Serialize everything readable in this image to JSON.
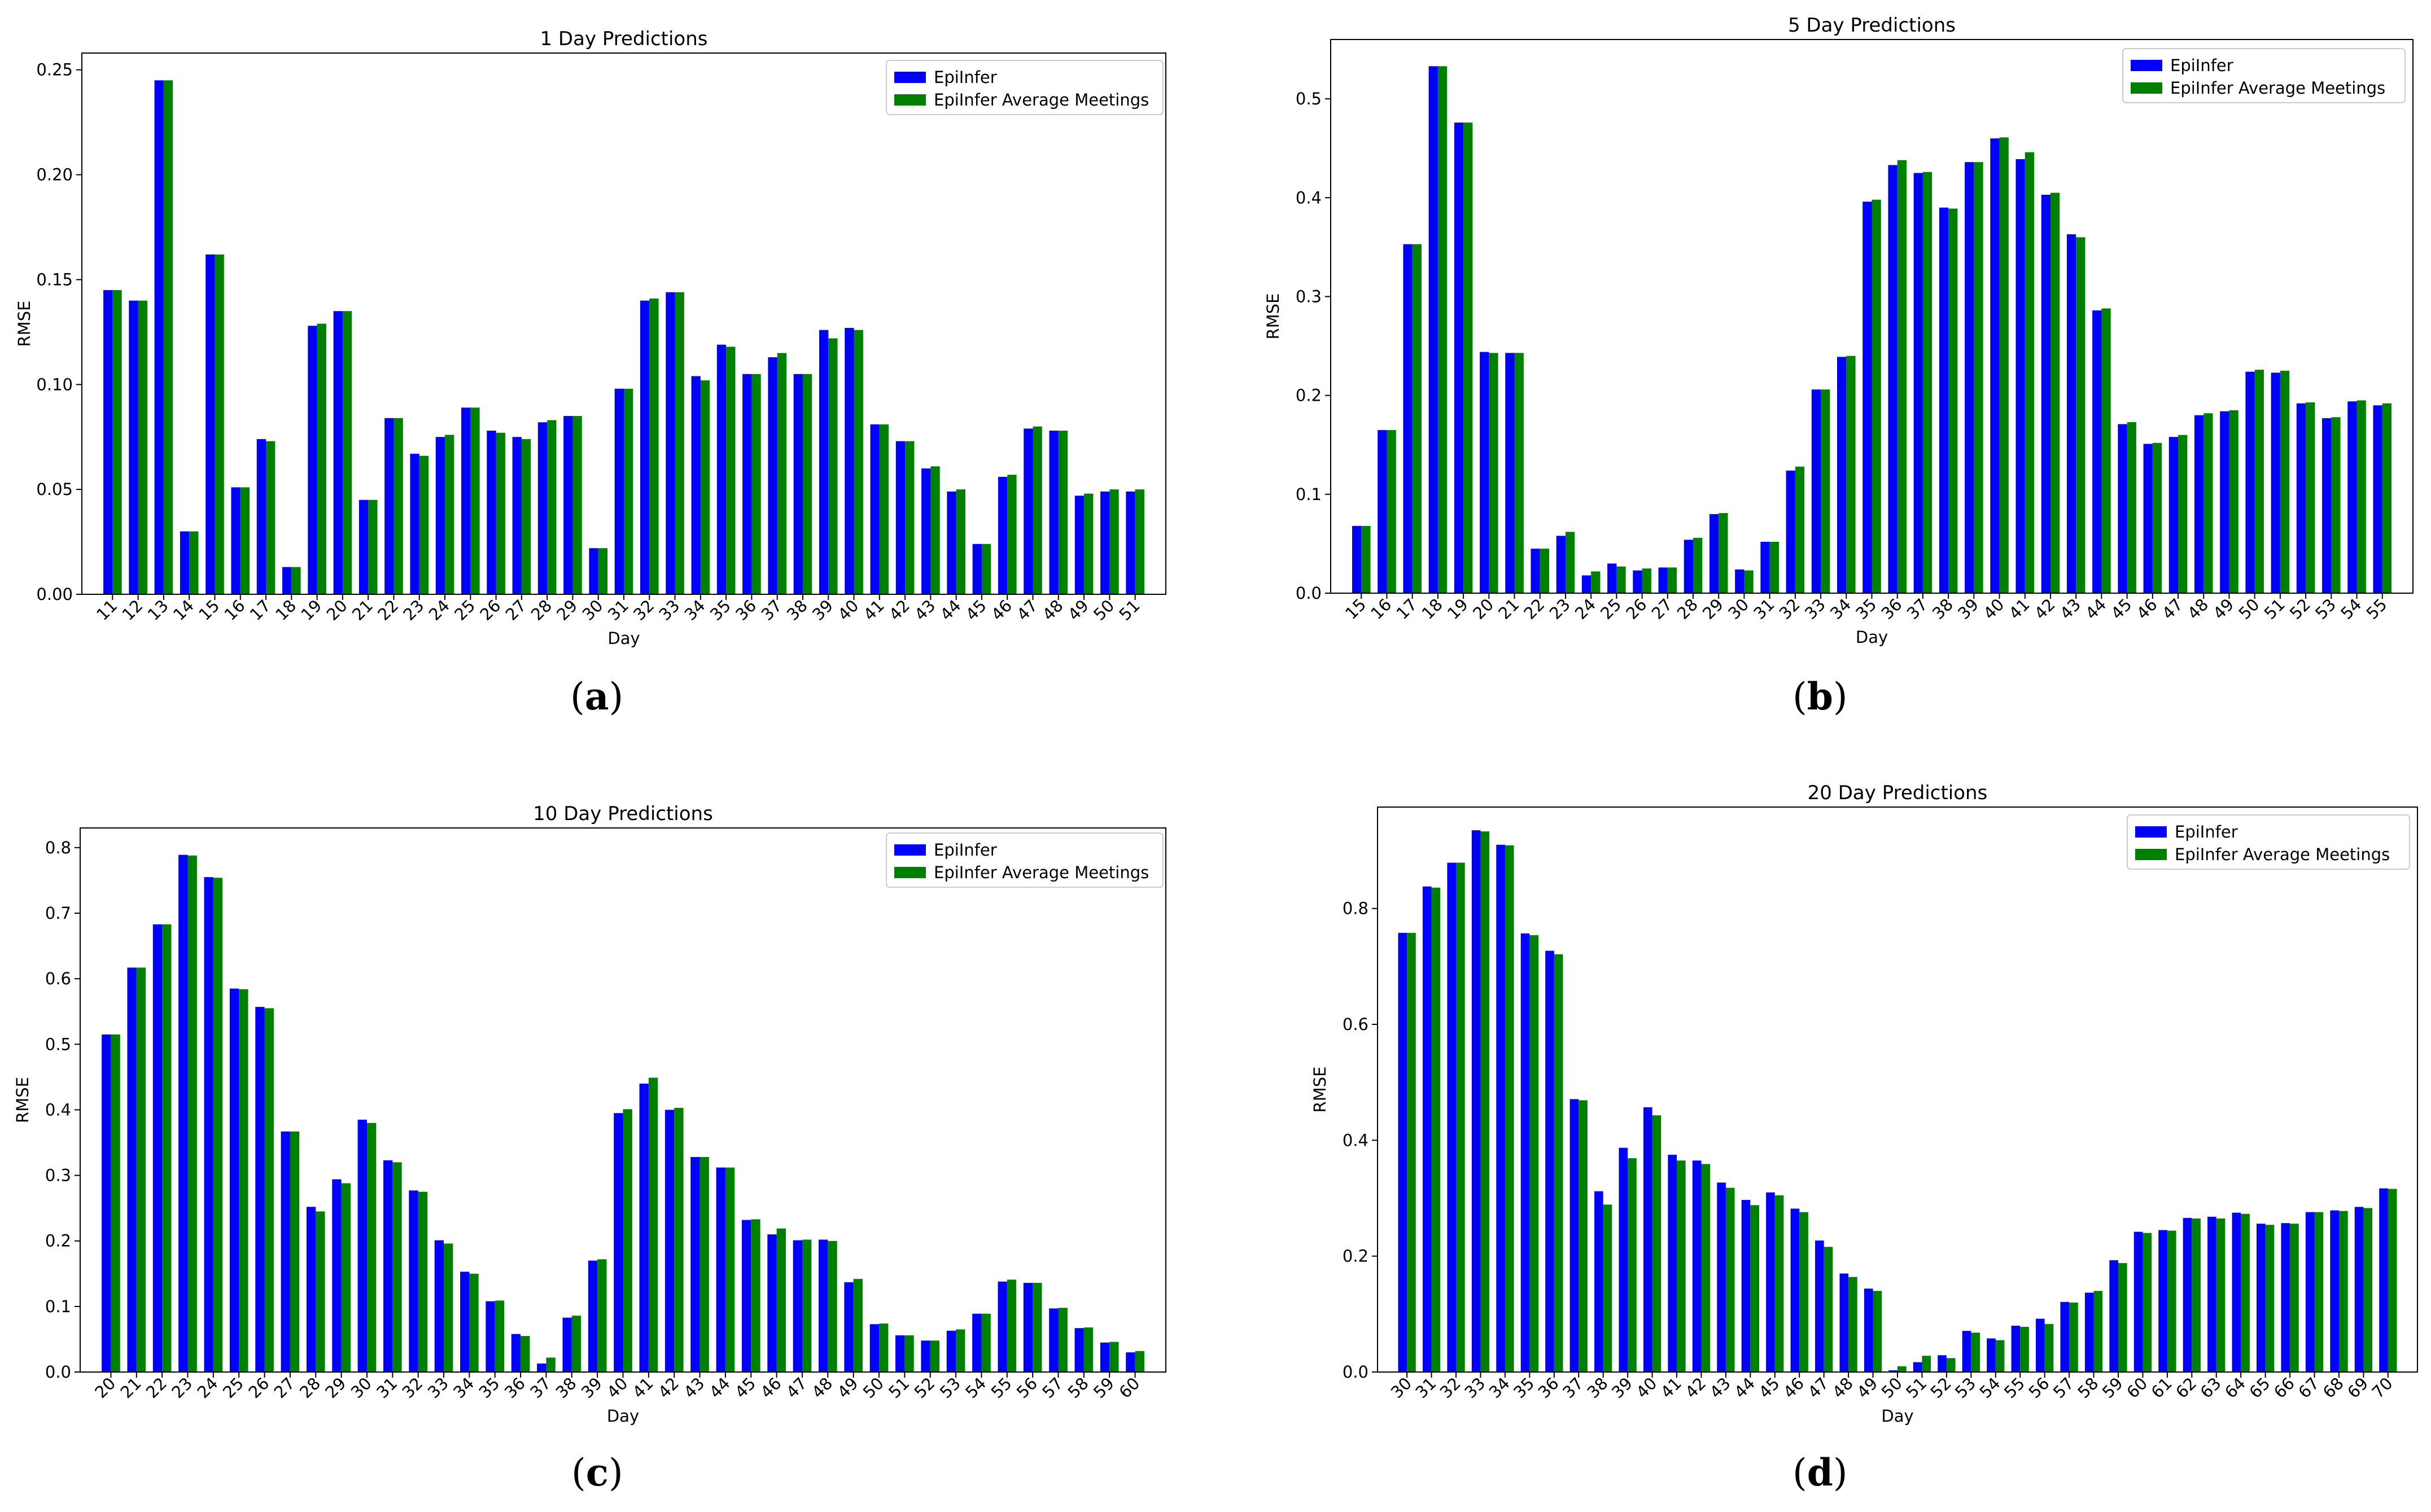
{
  "legend": [
    "EpiInfer",
    "EpiInfer Average Meetings"
  ],
  "colors": {
    "epiinfer": "#0000ff",
    "average_meetings": "#008000"
  },
  "chart_data": [
    {
      "id": "a",
      "type": "bar",
      "title": "1 Day Predictions",
      "xlabel": "Day",
      "ylabel": "RMSE",
      "caption": "a",
      "ylim": [
        0,
        0.258
      ],
      "yticks": [
        "0.00",
        "0.05",
        "0.10",
        "0.15",
        "0.20",
        "0.25"
      ],
      "ytick_values": [
        0,
        0.05,
        0.1,
        0.15,
        0.2,
        0.25
      ],
      "categories": [
        "11",
        "12",
        "13",
        "14",
        "15",
        "16",
        "17",
        "18",
        "19",
        "20",
        "21",
        "22",
        "23",
        "24",
        "25",
        "26",
        "27",
        "28",
        "29",
        "30",
        "31",
        "32",
        "33",
        "34",
        "35",
        "36",
        "37",
        "38",
        "39",
        "40",
        "41",
        "42",
        "43",
        "44",
        "45",
        "46",
        "47",
        "48",
        "49",
        "50",
        "51"
      ],
      "series": [
        {
          "name": "EpiInfer",
          "values": [
            0.145,
            0.14,
            0.245,
            0.03,
            0.162,
            0.051,
            0.074,
            0.013,
            0.128,
            0.135,
            0.045,
            0.084,
            0.067,
            0.075,
            0.089,
            0.078,
            0.075,
            0.082,
            0.085,
            0.022,
            0.098,
            0.14,
            0.144,
            0.104,
            0.119,
            0.105,
            0.113,
            0.105,
            0.126,
            0.127,
            0.081,
            0.073,
            0.06,
            0.049,
            0.024,
            0.056,
            0.079,
            0.078,
            0.047,
            0.049,
            0.049
          ]
        },
        {
          "name": "EpiInfer Average Meetings",
          "values": [
            0.145,
            0.14,
            0.245,
            0.03,
            0.162,
            0.051,
            0.073,
            0.013,
            0.129,
            0.135,
            0.045,
            0.084,
            0.066,
            0.076,
            0.089,
            0.077,
            0.074,
            0.083,
            0.085,
            0.022,
            0.098,
            0.141,
            0.144,
            0.102,
            0.118,
            0.105,
            0.115,
            0.105,
            0.122,
            0.126,
            0.081,
            0.073,
            0.061,
            0.05,
            0.024,
            0.057,
            0.08,
            0.078,
            0.048,
            0.05,
            0.05
          ]
        }
      ]
    },
    {
      "id": "b",
      "type": "bar",
      "title": "5 Day Predictions",
      "xlabel": "Day",
      "ylabel": "RMSE",
      "caption": "b",
      "ylim": [
        0,
        0.56
      ],
      "yticks": [
        "0.0",
        "0.1",
        "0.2",
        "0.3",
        "0.4",
        "0.5"
      ],
      "ytick_values": [
        0,
        0.1,
        0.2,
        0.3,
        0.4,
        0.5
      ],
      "categories": [
        "15",
        "16",
        "17",
        "18",
        "19",
        "20",
        "21",
        "22",
        "23",
        "24",
        "25",
        "26",
        "27",
        "28",
        "29",
        "30",
        "31",
        "32",
        "33",
        "34",
        "35",
        "36",
        "37",
        "38",
        "39",
        "40",
        "41",
        "42",
        "43",
        "44",
        "45",
        "46",
        "47",
        "48",
        "49",
        "50",
        "51",
        "52",
        "53",
        "54",
        "55"
      ],
      "series": [
        {
          "name": "EpiInfer",
          "values": [
            0.068,
            0.165,
            0.353,
            0.533,
            0.476,
            0.244,
            0.243,
            0.045,
            0.058,
            0.018,
            0.03,
            0.023,
            0.026,
            0.054,
            0.08,
            0.024,
            0.052,
            0.124,
            0.206,
            0.239,
            0.396,
            0.433,
            0.425,
            0.39,
            0.436,
            0.46,
            0.439,
            0.403,
            0.363,
            0.286,
            0.171,
            0.151,
            0.158,
            0.18,
            0.184,
            0.224,
            0.223,
            0.192,
            0.177,
            0.194,
            0.19
          ]
        },
        {
          "name": "EpiInfer Average Meetings",
          "values": [
            0.068,
            0.165,
            0.353,
            0.533,
            0.476,
            0.243,
            0.243,
            0.045,
            0.062,
            0.022,
            0.027,
            0.025,
            0.026,
            0.056,
            0.081,
            0.023,
            0.052,
            0.128,
            0.206,
            0.24,
            0.398,
            0.438,
            0.426,
            0.389,
            0.436,
            0.461,
            0.446,
            0.405,
            0.36,
            0.288,
            0.173,
            0.152,
            0.16,
            0.182,
            0.185,
            0.226,
            0.225,
            0.193,
            0.178,
            0.195,
            0.192
          ]
        }
      ]
    },
    {
      "id": "c",
      "type": "bar",
      "title": "10 Day Predictions",
      "xlabel": "Day",
      "ylabel": "RMSE",
      "caption": "c",
      "ylim": [
        0,
        0.83
      ],
      "yticks": [
        "0.0",
        "0.1",
        "0.2",
        "0.3",
        "0.4",
        "0.5",
        "0.6",
        "0.7",
        "0.8"
      ],
      "ytick_values": [
        0,
        0.1,
        0.2,
        0.3,
        0.4,
        0.5,
        0.6,
        0.7,
        0.8
      ],
      "categories": [
        "20",
        "21",
        "22",
        "23",
        "24",
        "25",
        "26",
        "27",
        "28",
        "29",
        "30",
        "31",
        "32",
        "33",
        "34",
        "35",
        "36",
        "37",
        "38",
        "39",
        "40",
        "41",
        "42",
        "43",
        "44",
        "45",
        "46",
        "47",
        "48",
        "49",
        "50",
        "51",
        "52",
        "53",
        "54",
        "55",
        "56",
        "57",
        "58",
        "59",
        "60"
      ],
      "series": [
        {
          "name": "EpiInfer",
          "values": [
            0.515,
            0.617,
            0.683,
            0.789,
            0.755,
            0.585,
            0.557,
            0.367,
            0.252,
            0.294,
            0.385,
            0.323,
            0.277,
            0.201,
            0.153,
            0.108,
            0.058,
            0.013,
            0.083,
            0.17,
            0.395,
            0.44,
            0.4,
            0.328,
            0.312,
            0.232,
            0.21,
            0.201,
            0.202,
            0.137,
            0.073,
            0.056,
            0.048,
            0.063,
            0.089,
            0.138,
            0.136,
            0.097,
            0.067,
            0.045,
            0.03
          ]
        },
        {
          "name": "EpiInfer Average Meetings",
          "values": [
            0.515,
            0.617,
            0.683,
            0.788,
            0.754,
            0.584,
            0.555,
            0.367,
            0.245,
            0.288,
            0.38,
            0.32,
            0.275,
            0.196,
            0.15,
            0.109,
            0.055,
            0.022,
            0.086,
            0.172,
            0.401,
            0.449,
            0.403,
            0.328,
            0.312,
            0.233,
            0.219,
            0.202,
            0.2,
            0.142,
            0.074,
            0.056,
            0.048,
            0.065,
            0.089,
            0.141,
            0.136,
            0.098,
            0.068,
            0.046,
            0.032
          ]
        }
      ]
    },
    {
      "id": "d",
      "type": "bar",
      "title": "20 Day Predictions",
      "xlabel": "Day",
      "ylabel": "RMSE",
      "caption": "d",
      "ylim": [
        0,
        0.975
      ],
      "yticks": [
        "0.0",
        "0.2",
        "0.4",
        "0.6",
        "0.8"
      ],
      "ytick_values": [
        0,
        0.2,
        0.4,
        0.6,
        0.8
      ],
      "categories": [
        "30",
        "31",
        "32",
        "33",
        "34",
        "35",
        "36",
        "37",
        "38",
        "39",
        "40",
        "41",
        "42",
        "43",
        "44",
        "45",
        "46",
        "47",
        "48",
        "49",
        "50",
        "51",
        "52",
        "53",
        "54",
        "55",
        "56",
        "57",
        "58",
        "59",
        "60",
        "61",
        "62",
        "63",
        "64",
        "65",
        "66",
        "67",
        "68",
        "69",
        "70"
      ],
      "series": [
        {
          "name": "EpiInfer",
          "values": [
            0.758,
            0.838,
            0.879,
            0.935,
            0.91,
            0.757,
            0.727,
            0.471,
            0.312,
            0.387,
            0.457,
            0.375,
            0.365,
            0.327,
            0.297,
            0.31,
            0.282,
            0.227,
            0.17,
            0.144,
            0.003,
            0.017,
            0.029,
            0.071,
            0.058,
            0.08,
            0.092,
            0.121,
            0.137,
            0.193,
            0.242,
            0.245,
            0.266,
            0.268,
            0.275,
            0.256,
            0.257,
            0.276,
            0.279,
            0.285,
            0.317
          ]
        },
        {
          "name": "EpiInfer Average Meetings",
          "values": [
            0.758,
            0.836,
            0.879,
            0.933,
            0.909,
            0.754,
            0.721,
            0.469,
            0.289,
            0.369,
            0.443,
            0.365,
            0.359,
            0.318,
            0.288,
            0.305,
            0.276,
            0.216,
            0.164,
            0.14,
            0.01,
            0.028,
            0.024,
            0.068,
            0.055,
            0.078,
            0.083,
            0.12,
            0.14,
            0.188,
            0.24,
            0.244,
            0.265,
            0.265,
            0.273,
            0.254,
            0.256,
            0.276,
            0.278,
            0.283,
            0.316
          ]
        }
      ]
    }
  ]
}
